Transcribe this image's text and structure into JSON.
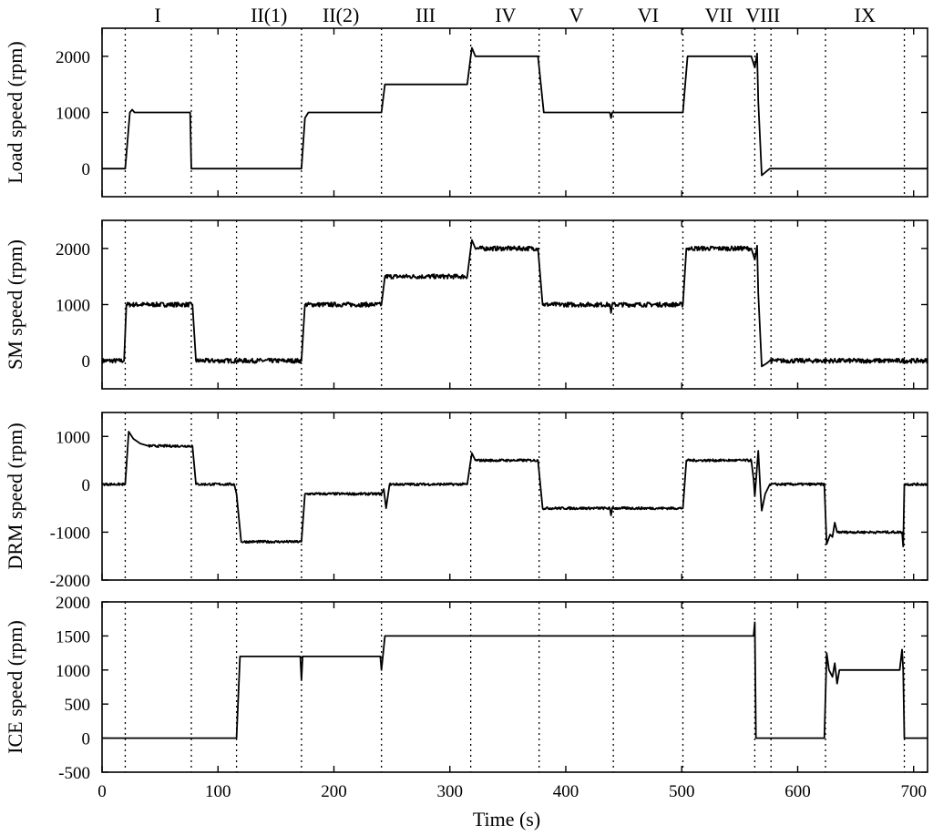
{
  "chart_data": {
    "type": "line",
    "xlabel": "Time (s)",
    "xlim": [
      0,
      712
    ],
    "xticks": [
      0,
      100,
      200,
      300,
      400,
      500,
      600,
      700
    ],
    "phase_boundaries": [
      20,
      77,
      116,
      172,
      241,
      318,
      377,
      441,
      501,
      563,
      577,
      624,
      692
    ],
    "phases": [
      {
        "label": "I",
        "x": 48
      },
      {
        "label": "II(1)",
        "x": 144
      },
      {
        "label": "II(2)",
        "x": 206
      },
      {
        "label": "III",
        "x": 279
      },
      {
        "label": "IV",
        "x": 348
      },
      {
        "label": "V",
        "x": 409
      },
      {
        "label": "VI",
        "x": 471
      },
      {
        "label": "VII",
        "x": 532
      },
      {
        "label": "VIII",
        "x": 570
      },
      {
        "label": "IX",
        "x": 658
      }
    ],
    "panels": [
      {
        "name": "load",
        "ylabel": "Load speed (rpm)",
        "ylim": [
          -500,
          2500
        ],
        "yticks": [
          0,
          1000,
          2000
        ],
        "noise": 0,
        "series": [
          {
            "t": 0,
            "v": 0
          },
          {
            "t": 20,
            "v": 0
          },
          {
            "t": 24,
            "v": 1000
          },
          {
            "t": 26,
            "v": 1050
          },
          {
            "t": 28,
            "v": 1000
          },
          {
            "t": 76,
            "v": 1000
          },
          {
            "t": 77,
            "v": 0
          },
          {
            "t": 172,
            "v": 0
          },
          {
            "t": 175,
            "v": 900
          },
          {
            "t": 178,
            "v": 1000
          },
          {
            "t": 241,
            "v": 1000
          },
          {
            "t": 244,
            "v": 1500
          },
          {
            "t": 315,
            "v": 1500
          },
          {
            "t": 318,
            "v": 2000
          },
          {
            "t": 319,
            "v": 2150
          },
          {
            "t": 322,
            "v": 2000
          },
          {
            "t": 376,
            "v": 2000
          },
          {
            "t": 381,
            "v": 1000
          },
          {
            "t": 438,
            "v": 1000
          },
          {
            "t": 439,
            "v": 900
          },
          {
            "t": 440,
            "v": 1000
          },
          {
            "t": 501,
            "v": 1000
          },
          {
            "t": 505,
            "v": 2000
          },
          {
            "t": 560,
            "v": 2000
          },
          {
            "t": 563,
            "v": 1800
          },
          {
            "t": 565,
            "v": 2050
          },
          {
            "t": 566,
            "v": 1200
          },
          {
            "t": 569,
            "v": -120
          },
          {
            "t": 573,
            "v": -50
          },
          {
            "t": 576,
            "v": 0
          },
          {
            "t": 712,
            "v": 0
          }
        ]
      },
      {
        "name": "sm",
        "ylabel": "SM speed (rpm)",
        "ylim": [
          -500,
          2500
        ],
        "yticks": [
          0,
          1000,
          2000
        ],
        "noise": 40,
        "series": [
          {
            "t": 0,
            "v": 0
          },
          {
            "t": 19,
            "v": 0
          },
          {
            "t": 21,
            "v": 1000
          },
          {
            "t": 78,
            "v": 1000
          },
          {
            "t": 81,
            "v": 0
          },
          {
            "t": 172,
            "v": 0
          },
          {
            "t": 175,
            "v": 1000
          },
          {
            "t": 241,
            "v": 1000
          },
          {
            "t": 244,
            "v": 1500
          },
          {
            "t": 315,
            "v": 1500
          },
          {
            "t": 318,
            "v": 2000
          },
          {
            "t": 319,
            "v": 2150
          },
          {
            "t": 322,
            "v": 2000
          },
          {
            "t": 376,
            "v": 2000
          },
          {
            "t": 380,
            "v": 1000
          },
          {
            "t": 438,
            "v": 1000
          },
          {
            "t": 439,
            "v": 850
          },
          {
            "t": 440,
            "v": 1000
          },
          {
            "t": 501,
            "v": 1000
          },
          {
            "t": 504,
            "v": 2000
          },
          {
            "t": 560,
            "v": 2000
          },
          {
            "t": 563,
            "v": 1800
          },
          {
            "t": 565,
            "v": 2050
          },
          {
            "t": 566,
            "v": 1200
          },
          {
            "t": 569,
            "v": -100
          },
          {
            "t": 573,
            "v": -50
          },
          {
            "t": 576,
            "v": 0
          },
          {
            "t": 712,
            "v": 0
          }
        ]
      },
      {
        "name": "drm",
        "ylabel": "DRM speed (rpm)",
        "ylim": [
          -2000,
          1500
        ],
        "yticks": [
          -2000,
          -1000,
          0,
          1000
        ],
        "noise": 25,
        "series": [
          {
            "t": 0,
            "v": 0
          },
          {
            "t": 20,
            "v": 0
          },
          {
            "t": 23,
            "v": 1100
          },
          {
            "t": 27,
            "v": 950
          },
          {
            "t": 33,
            "v": 850
          },
          {
            "t": 40,
            "v": 800
          },
          {
            "t": 78,
            "v": 800
          },
          {
            "t": 81,
            "v": 0
          },
          {
            "t": 114,
            "v": 0
          },
          {
            "t": 116,
            "v": -200
          },
          {
            "t": 120,
            "v": -1200
          },
          {
            "t": 172,
            "v": -1200
          },
          {
            "t": 175,
            "v": -200
          },
          {
            "t": 241,
            "v": -200
          },
          {
            "t": 243,
            "v": -100
          },
          {
            "t": 245,
            "v": -500
          },
          {
            "t": 248,
            "v": 0
          },
          {
            "t": 315,
            "v": 0
          },
          {
            "t": 318,
            "v": 500
          },
          {
            "t": 319,
            "v": 650
          },
          {
            "t": 322,
            "v": 500
          },
          {
            "t": 376,
            "v": 500
          },
          {
            "t": 380,
            "v": -500
          },
          {
            "t": 438,
            "v": -500
          },
          {
            "t": 439,
            "v": -650
          },
          {
            "t": 440,
            "v": -500
          },
          {
            "t": 501,
            "v": -500
          },
          {
            "t": 504,
            "v": 500
          },
          {
            "t": 560,
            "v": 500
          },
          {
            "t": 562,
            "v": 100
          },
          {
            "t": 563,
            "v": -250
          },
          {
            "t": 566,
            "v": 700
          },
          {
            "t": 568,
            "v": -200
          },
          {
            "t": 569,
            "v": -550
          },
          {
            "t": 572,
            "v": -200
          },
          {
            "t": 576,
            "v": 0
          },
          {
            "t": 623,
            "v": 0
          },
          {
            "t": 625,
            "v": -1250
          },
          {
            "t": 628,
            "v": -1050
          },
          {
            "t": 630,
            "v": -1100
          },
          {
            "t": 632,
            "v": -800
          },
          {
            "t": 634,
            "v": -1000
          },
          {
            "t": 690,
            "v": -1000
          },
          {
            "t": 691,
            "v": -1300
          },
          {
            "t": 692,
            "v": 0
          },
          {
            "t": 712,
            "v": 0
          }
        ]
      },
      {
        "name": "ice",
        "ylabel": "ICE speed (rpm)",
        "ylim": [
          -500,
          2000
        ],
        "yticks": [
          -500,
          0,
          500,
          1000,
          1500,
          2000
        ],
        "noise": 0,
        "series": [
          {
            "t": 0,
            "v": 0
          },
          {
            "t": 116,
            "v": 0
          },
          {
            "t": 119,
            "v": 1200
          },
          {
            "t": 171,
            "v": 1200
          },
          {
            "t": 172,
            "v": 850
          },
          {
            "t": 173,
            "v": 1200
          },
          {
            "t": 240,
            "v": 1200
          },
          {
            "t": 241,
            "v": 1000
          },
          {
            "t": 244,
            "v": 1500
          },
          {
            "t": 562,
            "v": 1500
          },
          {
            "t": 563,
            "v": 1700
          },
          {
            "t": 564,
            "v": 0
          },
          {
            "t": 623,
            "v": 0
          },
          {
            "t": 625,
            "v": 1250
          },
          {
            "t": 627,
            "v": 1000
          },
          {
            "t": 630,
            "v": 900
          },
          {
            "t": 632,
            "v": 1100
          },
          {
            "t": 634,
            "v": 800
          },
          {
            "t": 636,
            "v": 1000
          },
          {
            "t": 688,
            "v": 1000
          },
          {
            "t": 690,
            "v": 1300
          },
          {
            "t": 691,
            "v": 1000
          },
          {
            "t": 692,
            "v": 0
          },
          {
            "t": 712,
            "v": 0
          }
        ]
      }
    ]
  }
}
